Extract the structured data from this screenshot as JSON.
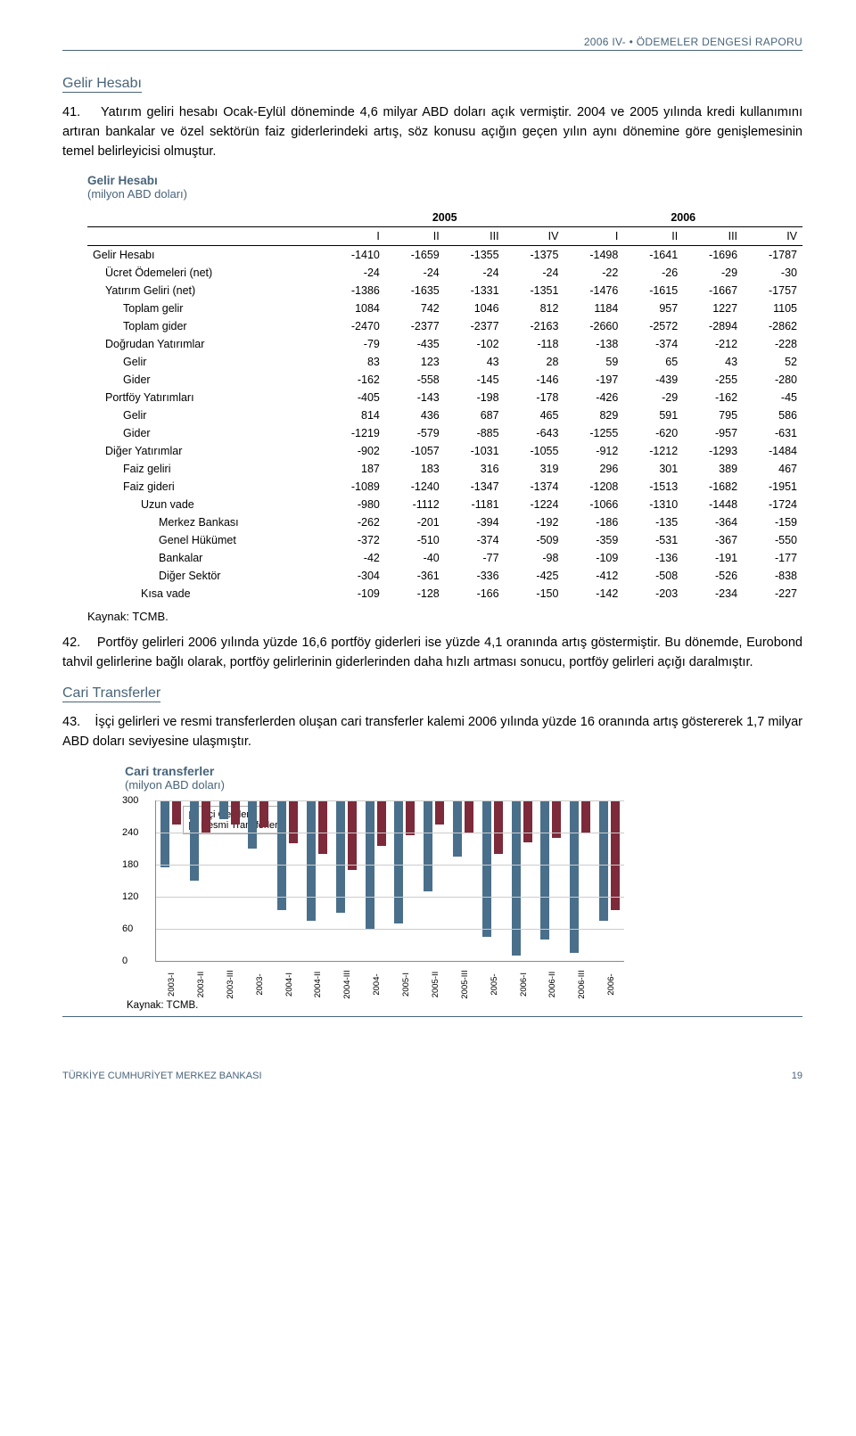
{
  "header": {
    "left": "2006 IV-",
    "right": "ÖDEMELER DENGESİ RAPORU"
  },
  "section1": "Gelir Hesabı",
  "p41_num": "41.",
  "p41": "Yatırım geliri hesabı Ocak-Eylül döneminde 4,6 milyar ABD doları açık vermiştir. 2004 ve 2005 yılında kredi kullanımını artıran bankalar ve özel sektörün faiz giderlerindeki artış, söz konusu açığın geçen yılın aynı dönemine göre genişlemesinin temel belirleyicisi olmuştur.",
  "table": {
    "title": "Gelir Hesabı",
    "subtitle": "(milyon ABD doları)",
    "years": [
      "2005",
      "2006"
    ],
    "cols": [
      "I",
      "II",
      "III",
      "IV",
      "I",
      "II",
      "III",
      "IV"
    ],
    "rows": [
      {
        "label": "Gelir Hesabı",
        "indent": 0,
        "v": [
          "-1410",
          "-1659",
          "-1355",
          "-1375",
          "-1498",
          "-1641",
          "-1696",
          "-1787"
        ]
      },
      {
        "label": "Ücret Ödemeleri (net)",
        "indent": 1,
        "v": [
          "-24",
          "-24",
          "-24",
          "-24",
          "-22",
          "-26",
          "-29",
          "-30"
        ]
      },
      {
        "label": "Yatırım Geliri (net)",
        "indent": 1,
        "v": [
          "-1386",
          "-1635",
          "-1331",
          "-1351",
          "-1476",
          "-1615",
          "-1667",
          "-1757"
        ]
      },
      {
        "label": "Toplam gelir",
        "indent": 2,
        "v": [
          "1084",
          "742",
          "1046",
          "812",
          "1184",
          "957",
          "1227",
          "1105"
        ]
      },
      {
        "label": "Toplam gider",
        "indent": 2,
        "v": [
          "-2470",
          "-2377",
          "-2377",
          "-2163",
          "-2660",
          "-2572",
          "-2894",
          "-2862"
        ]
      },
      {
        "label": "Doğrudan Yatırımlar",
        "indent": 1,
        "v": [
          "-79",
          "-435",
          "-102",
          "-118",
          "-138",
          "-374",
          "-212",
          "-228"
        ]
      },
      {
        "label": "Gelir",
        "indent": 2,
        "v": [
          "83",
          "123",
          "43",
          "28",
          "59",
          "65",
          "43",
          "52"
        ]
      },
      {
        "label": "Gider",
        "indent": 2,
        "v": [
          "-162",
          "-558",
          "-145",
          "-146",
          "-197",
          "-439",
          "-255",
          "-280"
        ]
      },
      {
        "label": "Portföy Yatırımları",
        "indent": 1,
        "v": [
          "-405",
          "-143",
          "-198",
          "-178",
          "-426",
          "-29",
          "-162",
          "-45"
        ]
      },
      {
        "label": "Gelir",
        "indent": 2,
        "v": [
          "814",
          "436",
          "687",
          "465",
          "829",
          "591",
          "795",
          "586"
        ]
      },
      {
        "label": "Gider",
        "indent": 2,
        "v": [
          "-1219",
          "-579",
          "-885",
          "-643",
          "-1255",
          "-620",
          "-957",
          "-631"
        ]
      },
      {
        "label": "Diğer Yatırımlar",
        "indent": 1,
        "v": [
          "-902",
          "-1057",
          "-1031",
          "-1055",
          "-912",
          "-1212",
          "-1293",
          "-1484"
        ]
      },
      {
        "label": "Faiz geliri",
        "indent": 2,
        "v": [
          "187",
          "183",
          "316",
          "319",
          "296",
          "301",
          "389",
          "467"
        ]
      },
      {
        "label": "Faiz gideri",
        "indent": 2,
        "v": [
          "-1089",
          "-1240",
          "-1347",
          "-1374",
          "-1208",
          "-1513",
          "-1682",
          "-1951"
        ]
      },
      {
        "label": "Uzun vade",
        "indent": 3,
        "v": [
          "-980",
          "-1112",
          "-1181",
          "-1224",
          "-1066",
          "-1310",
          "-1448",
          "-1724"
        ]
      },
      {
        "label": "Merkez Bankası",
        "indent": 4,
        "v": [
          "-262",
          "-201",
          "-394",
          "-192",
          "-186",
          "-135",
          "-364",
          "-159"
        ]
      },
      {
        "label": "Genel Hükümet",
        "indent": 4,
        "v": [
          "-372",
          "-510",
          "-374",
          "-509",
          "-359",
          "-531",
          "-367",
          "-550"
        ]
      },
      {
        "label": "Bankalar",
        "indent": 4,
        "v": [
          "-42",
          "-40",
          "-77",
          "-98",
          "-109",
          "-136",
          "-191",
          "-177"
        ]
      },
      {
        "label": "Diğer Sektör",
        "indent": 4,
        "v": [
          "-304",
          "-361",
          "-336",
          "-425",
          "-412",
          "-508",
          "-526",
          "-838"
        ]
      },
      {
        "label": "Kısa vade",
        "indent": 3,
        "v": [
          "-109",
          "-128",
          "-166",
          "-150",
          "-142",
          "-203",
          "-234",
          "-227"
        ]
      }
    ],
    "source": "Kaynak: TCMB."
  },
  "p42_num": "42.",
  "p42": "Portföy gelirleri 2006 yılında yüzde 16,6 portföy giderleri ise yüzde 4,1 oranında artış göstermiştir. Bu dönemde, Eurobond tahvil gelirlerine bağlı olarak, portföy gelirlerinin giderlerinden daha hızlı artması sonucu, portföy gelirleri açığı daralmıştır.",
  "section2": "Cari Transferler",
  "p43_num": "43.",
  "p43": "İşçi gelirleri ve resmi transferlerden oluşan cari transferler kalemi 2006 yılında yüzde 16 oranında artış göstererek 1,7 milyar ABD doları seviyesine ulaşmıştır.",
  "chart": {
    "title": "Cari transferler",
    "subtitle": "(milyon ABD doları)",
    "legend": [
      "İşçi Gelirleri",
      "Resmi Transferler"
    ],
    "categories": [
      "2003-I",
      "2003-II",
      "2003-III",
      "2003-",
      "2004-I",
      "2004-II",
      "2004-III",
      "2004-",
      "2005-I",
      "2005-II",
      "2005-III",
      "2005-",
      "2006-I",
      "2006-II",
      "2006-III",
      "2006-"
    ],
    "series": [
      {
        "name": "İşçi Gelirleri",
        "color": "#4a6f8a",
        "values": [
          125,
          150,
          35,
          90,
          205,
          225,
          210,
          240,
          230,
          170,
          105,
          255,
          290,
          260,
          285,
          225
        ]
      },
      {
        "name": "Resmi Transferler",
        "color": "#7d2a3a",
        "values": [
          45,
          60,
          45,
          50,
          80,
          100,
          130,
          85,
          65,
          45,
          60,
          100,
          78,
          70,
          60,
          205
        ]
      }
    ],
    "ymax": 300,
    "ytick": 60,
    "source": "Kaynak: TCMB."
  },
  "footer": {
    "left": "TÜRKİYE CUMHURİYET MERKEZ BANKASI",
    "page": "19"
  }
}
